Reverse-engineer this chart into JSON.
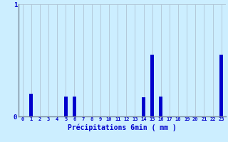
{
  "title": "",
  "xlabel": "Précipitations 6min ( mm )",
  "hours": [
    0,
    1,
    2,
    3,
    4,
    5,
    6,
    7,
    8,
    9,
    10,
    11,
    12,
    13,
    14,
    15,
    16,
    17,
    18,
    19,
    20,
    21,
    22,
    23
  ],
  "values": [
    0,
    0.2,
    0,
    0,
    0,
    0.18,
    0.18,
    0,
    0,
    0,
    0,
    0,
    0,
    0,
    0.17,
    0.55,
    0.18,
    0,
    0,
    0,
    0,
    0,
    0,
    0.55
  ],
  "bar_color": "#0000cc",
  "bg_color": "#cceeff",
  "grid_color": "#aabbcc",
  "axis_color": "#778899",
  "text_color": "#0000cc",
  "ylim": [
    0,
    1.0
  ],
  "yticks": [
    0,
    1
  ],
  "xlim": [
    -0.5,
    23.5
  ]
}
